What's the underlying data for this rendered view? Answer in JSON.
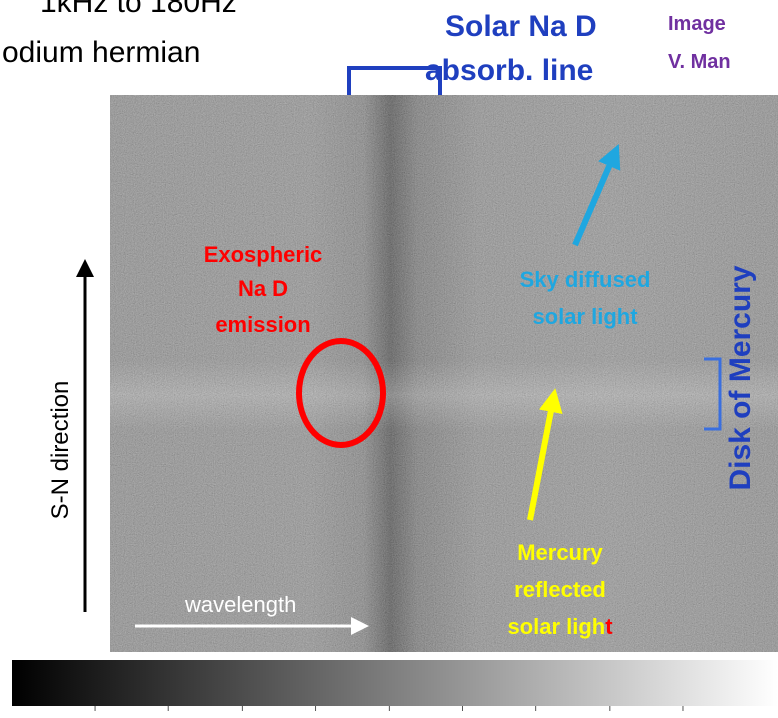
{
  "header": {
    "line1": "1kHz to 180Hz",
    "line2": "odium hermian"
  },
  "labels": {
    "solar_line1": "Solar Na D",
    "solar_line2": "absorb. line",
    "credit_line1": "Image",
    "credit_line2": "V. Man",
    "exo_line1": "Exospheric",
    "exo_line2": "Na D",
    "exo_line3": "emission",
    "sky_line1": "Sky diffused",
    "sky_line2": "solar light",
    "disk": "Disk of Mercury",
    "sn": "S-N direction",
    "wavelength": "wavelength",
    "merc_line1": "Mercury",
    "merc_line2": "reflected",
    "merc_line3a": "solar ligh",
    "merc_line3b": "t"
  },
  "colorbar": {
    "range": [
      226,
      2467
    ],
    "ticks": [
      469,
      683,
      900,
      1114,
      1330,
      1544,
      1758,
      1975,
      2189
    ]
  }
}
